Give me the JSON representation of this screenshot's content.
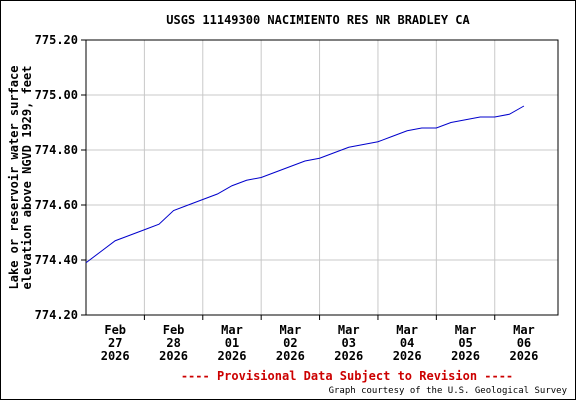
{
  "chart_data": {
    "type": "line",
    "title": "USGS 11149300 NACIMIENTO RES NR BRADLEY CA",
    "ylabel": [
      "Lake or reservoir water surface",
      "elevation above NGVD 1929, feet"
    ],
    "footer_notice": "---- Provisional Data Subject to Revision ----",
    "credit": "Graph courtesy of the U.S. Geological Survey",
    "xlim": [
      "2026-02-27T00:00",
      "2026-03-07T02:00"
    ],
    "xticks": [
      {
        "value": "2026-02-27T12:00",
        "label": [
          "Feb",
          "27",
          "2026"
        ]
      },
      {
        "value": "2026-02-28T12:00",
        "label": [
          "Feb",
          "28",
          "2026"
        ]
      },
      {
        "value": "2026-03-01T12:00",
        "label": [
          "Mar",
          "01",
          "2026"
        ]
      },
      {
        "value": "2026-03-02T12:00",
        "label": [
          "Mar",
          "02",
          "2026"
        ]
      },
      {
        "value": "2026-03-03T12:00",
        "label": [
          "Mar",
          "03",
          "2026"
        ]
      },
      {
        "value": "2026-03-04T12:00",
        "label": [
          "Mar",
          "04",
          "2026"
        ]
      },
      {
        "value": "2026-03-05T12:00",
        "label": [
          "Mar",
          "05",
          "2026"
        ]
      },
      {
        "value": "2026-03-06T12:00",
        "label": [
          "Mar",
          "06",
          "2026"
        ]
      }
    ],
    "xgrid": [
      "2026-02-28T00:00",
      "2026-03-01T00:00",
      "2026-03-02T00:00",
      "2026-03-03T00:00",
      "2026-03-04T00:00",
      "2026-03-05T00:00",
      "2026-03-06T00:00"
    ],
    "ylim": [
      774.2,
      775.2
    ],
    "yticks": [
      {
        "value": 774.2,
        "label": "774.20"
      },
      {
        "value": 774.4,
        "label": "774.40"
      },
      {
        "value": 774.6,
        "label": "774.60"
      },
      {
        "value": 774.8,
        "label": "774.80"
      },
      {
        "value": 775.0,
        "label": "775.00"
      },
      {
        "value": 775.2,
        "label": "775.20"
      }
    ],
    "grid": true,
    "color": "#0000cc",
    "x": [
      "2026-02-27T00:00",
      "2026-02-27T06:00",
      "2026-02-27T12:00",
      "2026-02-27T18:00",
      "2026-02-28T00:00",
      "2026-02-28T06:00",
      "2026-02-28T12:00",
      "2026-02-28T18:00",
      "2026-03-01T00:00",
      "2026-03-01T06:00",
      "2026-03-01T12:00",
      "2026-03-01T18:00",
      "2026-03-02T00:00",
      "2026-03-02T06:00",
      "2026-03-02T12:00",
      "2026-03-02T18:00",
      "2026-03-03T00:00",
      "2026-03-03T06:00",
      "2026-03-03T12:00",
      "2026-03-03T18:00",
      "2026-03-04T00:00",
      "2026-03-04T06:00",
      "2026-03-04T12:00",
      "2026-03-04T18:00",
      "2026-03-05T00:00",
      "2026-03-05T06:00",
      "2026-03-05T12:00",
      "2026-03-05T18:00",
      "2026-03-06T00:00",
      "2026-03-06T06:00",
      "2026-03-06T12:00"
    ],
    "values": [
      774.39,
      774.43,
      774.47,
      774.49,
      774.51,
      774.53,
      774.58,
      774.6,
      774.62,
      774.64,
      774.67,
      774.69,
      774.7,
      774.72,
      774.74,
      774.76,
      774.77,
      774.79,
      774.81,
      774.82,
      774.83,
      774.85,
      774.87,
      774.88,
      774.88,
      774.9,
      774.91,
      774.92,
      774.92,
      774.93,
      774.96
    ]
  }
}
